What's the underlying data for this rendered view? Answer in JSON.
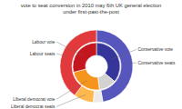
{
  "chart_data": {
    "type": "pie",
    "title": "vote to seat conversion in 2010 may 6th UK general election",
    "subtitle": "under first-past-the-post",
    "series": [
      {
        "categories": [
          "Conservative seats",
          null,
          "Liberal democrat seats",
          "Labour seats"
        ],
        "values": [
          306,
          28,
          57,
          258
        ],
        "colors": [
          "#5656bd",
          "#ebebeb",
          "#ffb84d",
          "#e2393d"
        ]
      },
      {
        "categories": [
          "Conservative vote",
          null,
          "Liberal democrat vote",
          "Labour vote"
        ],
        "values": [
          36.1,
          11.9,
          23,
          29
        ],
        "colors": [
          "#35359a",
          "#d2d2d2",
          "#f5951e",
          "#c4161f"
        ]
      }
    ]
  }
}
